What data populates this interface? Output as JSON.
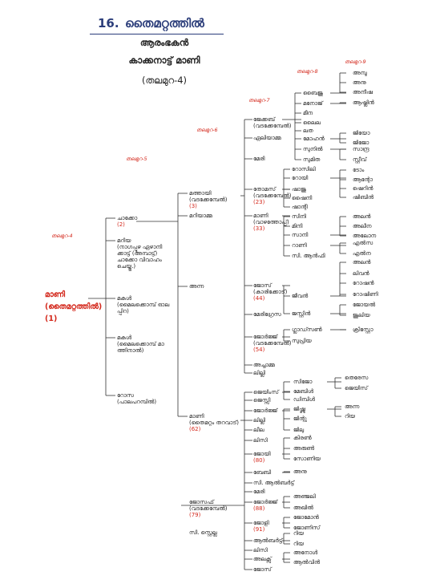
{
  "header": {
    "number": "16.",
    "family_name": "തൈമറ്റത്തിൽ",
    "founder_label": "ആരംഭകൻ",
    "founder_name": "കാക്കനാട്ട് മാണി",
    "generation_note": "(തലമുറ-4)"
  },
  "generation_labels": {
    "g4": "തലമുറ-4",
    "g5": "തലമുറ-5",
    "g6": "തലമുറ-6",
    "g7": "തലമുറ-7",
    "g8": "തലമുറ-8",
    "g9": "തലമുറ-9"
  },
  "root": {
    "name": "മാണി",
    "house": "(തൈമറ്റത്തിൽ)",
    "number": "(1)"
  },
  "tree": {
    "g5": [
      {
        "lines": [
          "ചാക്കോ"
        ],
        "num": "(2)"
      },
      {
        "lines": [
          "മറിയ",
          "(നാഗപ്പുഴ ഏഴാനി",
          "ക്കാട്ട് (അമ്പാട്ട്)",
          "ചാക്കോ വിവാഹം",
          "ചെയ്തു.)"
        ]
      },
      {
        "lines": [
          "മകൾ",
          "(മൈലക്കൊമ്പ് ഓല",
          "പ്പിറ)"
        ]
      },
      {
        "lines": [
          "മകൾ",
          "(മൈലക്കൊമ്പ് മാ",
          "ത്തിനാൽ)"
        ]
      },
      {
        "lines": [
          "റോസ",
          "(പാലപറമ്പിൽ)"
        ]
      }
    ],
    "g6": [
      {
        "lines": [
          "മത്തായി",
          "(വടക്കേമ്പേൽ)"
        ],
        "num": "(3)"
      },
      {
        "lines": [
          "മറിയാമ്മ"
        ]
      },
      {
        "lines": [
          "അന്ന"
        ]
      },
      {
        "lines": [
          "മാണി",
          "(തൈമറ്റം തറവാട്)"
        ],
        "num": "(62)"
      }
    ],
    "g7_a": [
      {
        "lines": [
          "ജേക്കബ്",
          "(വടക്കേമ്പേൽ)"
        ]
      },
      {
        "lines": [
          "ഏലിയാമ്മ"
        ]
      },
      {
        "lines": [
          "മേരി"
        ]
      },
      {
        "lines": [
          "തോമസ്",
          "(വടക്കേമ്പേൽ)"
        ],
        "num": "(23)"
      },
      {
        "lines": [
          "മാണി",
          "(വാഴത്തോപ്പ്)"
        ],
        "num": "(33)"
      },
      {
        "lines": [
          "ജോസ്",
          "(കാരിക്കോട്)"
        ],
        "num": "(44)"
      },
      {
        "lines": [
          "മേരിഗ്രേസ"
        ]
      },
      {
        "lines": [
          "ജോർജ്ജ്",
          "(വടക്കേമ്പേൽ)"
        ],
        "num": "(54)"
      },
      {
        "lines": [
          "അച്ചാമ്മ"
        ]
      },
      {
        "lines": [
          "ലില്ലി"
        ]
      }
    ],
    "g7_b": [
      {
        "lines": [
          "ജെയിംസ്"
        ]
      },
      {
        "lines": [
          "ജെസ്സി"
        ]
      },
      {
        "lines": [
          "ജോർജ്ജ്"
        ]
      },
      {
        "lines": [
          "ലില്ലി"
        ]
      },
      {
        "lines": [
          "ലീല"
        ]
      },
      {
        "lines": [
          "ലിസി"
        ]
      },
      {
        "lines": [
          "ജോയി"
        ],
        "num": "(80)"
      },
      {
        "lines": [
          "ബേബി"
        ]
      },
      {
        "lines": [
          "സി. ആൽബർട്ട്"
        ]
      },
      {
        "lines": [
          "മേരി"
        ]
      },
      {
        "lines": [
          "ജോർജ്ജ്"
        ],
        "num": "(88)"
      },
      {
        "lines": [
          "ജോളി"
        ],
        "num": "(91)"
      },
      {
        "lines": [
          "ആൽബർട്ട്"
        ]
      },
      {
        "lines": [
          "ലിസി"
        ]
      },
      {
        "lines": [
          "അലക്സ്"
        ]
      },
      {
        "lines": [
          "ജോസ്"
        ]
      }
    ],
    "joseph": {
      "lines": [
        "ജോസഫ്",
        "(വടക്കേമ്പേൽ)"
      ],
      "num": "(79)"
    },
    "sister_stella": "സി. സ്റ്റെല്ല",
    "g8_a": [
      "ബൈജു",
      "മനോജ്",
      "മീന",
      "ലൈല",
      "ലത",
      "മോഹൻ",
      "സുനിൽ",
      "സുമിത",
      "റോസിലി",
      "റോയി",
      "ഷാജു",
      "ഷൈനി",
      "ഷാന്റി",
      "സിനി",
      "മിനി",
      "സാനി",
      "റാണി",
      "സി. ആൻഫി",
      "ജീവൻ",
      "ജസ്റ്റിൻ",
      "ഗ്ലാഡ്സൺ",
      "സുപ്രിയ"
    ],
    "g8_b": [
      "സിജോ",
      "മേബിൾ",
      "ഡിമ്പിൾ",
      "ജിഷ്ണു",
      "ജിന്റു",
      "ജിലു",
      "കിരൺ",
      "അരുൺ",
      "സോണിയ",
      "അനു",
      "അഞ്ജലി",
      "അഖിൽ",
      "ജോമോൻ",
      "ജോണിസ്",
      "റിയ",
      "റിയ",
      "അനോൾ",
      "ആൽവിൻ"
    ],
    "g9_a": [
      "അമ്പു",
      "അനു",
      "അനീഷ",
      "ആഷ്ലിൻ",
      "ജിയോ",
      "ജിജോ",
      "സാന്ദ്ര",
      "സ്റ്റീവ്",
      "ടോം",
      "ആന്റോ",
      "ഷെറിൻ",
      "ഷിബിൻ",
      "അലൻ",
      "അലീന",
      "അലോന",
      "എൽസ",
      "എൽന",
      "അലൻ",
      "ലിവൻ",
      "റോഷൻ",
      "റോഷിണി",
      "ജോയൽ",
      "ജൂലിയ",
      "ക്രിസ്റ്റോ"
    ],
    "g9_b": [
      "തെരേസ",
      "ജെയിസ്",
      "അന്ന",
      "റിയ"
    ]
  }
}
